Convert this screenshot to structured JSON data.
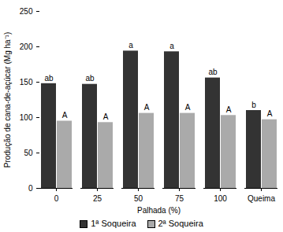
{
  "chart_data": {
    "type": "bar",
    "x_label": "Palhada (%)",
    "y_label": "Produção de cana-de-açúcar (Mg ha⁻¹)",
    "categories": [
      "0",
      "25",
      "50",
      "75",
      "100",
      "Queima"
    ],
    "series": [
      {
        "name": "1ª Soqueira",
        "color": "#333333",
        "values": [
          148,
          147,
          194,
          193,
          156,
          110
        ],
        "labels": [
          "ab",
          "ab",
          "a",
          "a",
          "ab",
          "b"
        ]
      },
      {
        "name": "2ª Soqueira",
        "color": "#aaaaaa",
        "values": [
          95,
          93,
          106,
          106,
          103,
          97
        ],
        "labels": [
          "A",
          "A",
          "A",
          "A",
          "A",
          "A"
        ]
      }
    ],
    "ylim": [
      0,
      250
    ],
    "yticks": [
      0,
      50,
      100,
      150,
      200,
      250
    ],
    "grid": false,
    "legend": "bottom"
  }
}
